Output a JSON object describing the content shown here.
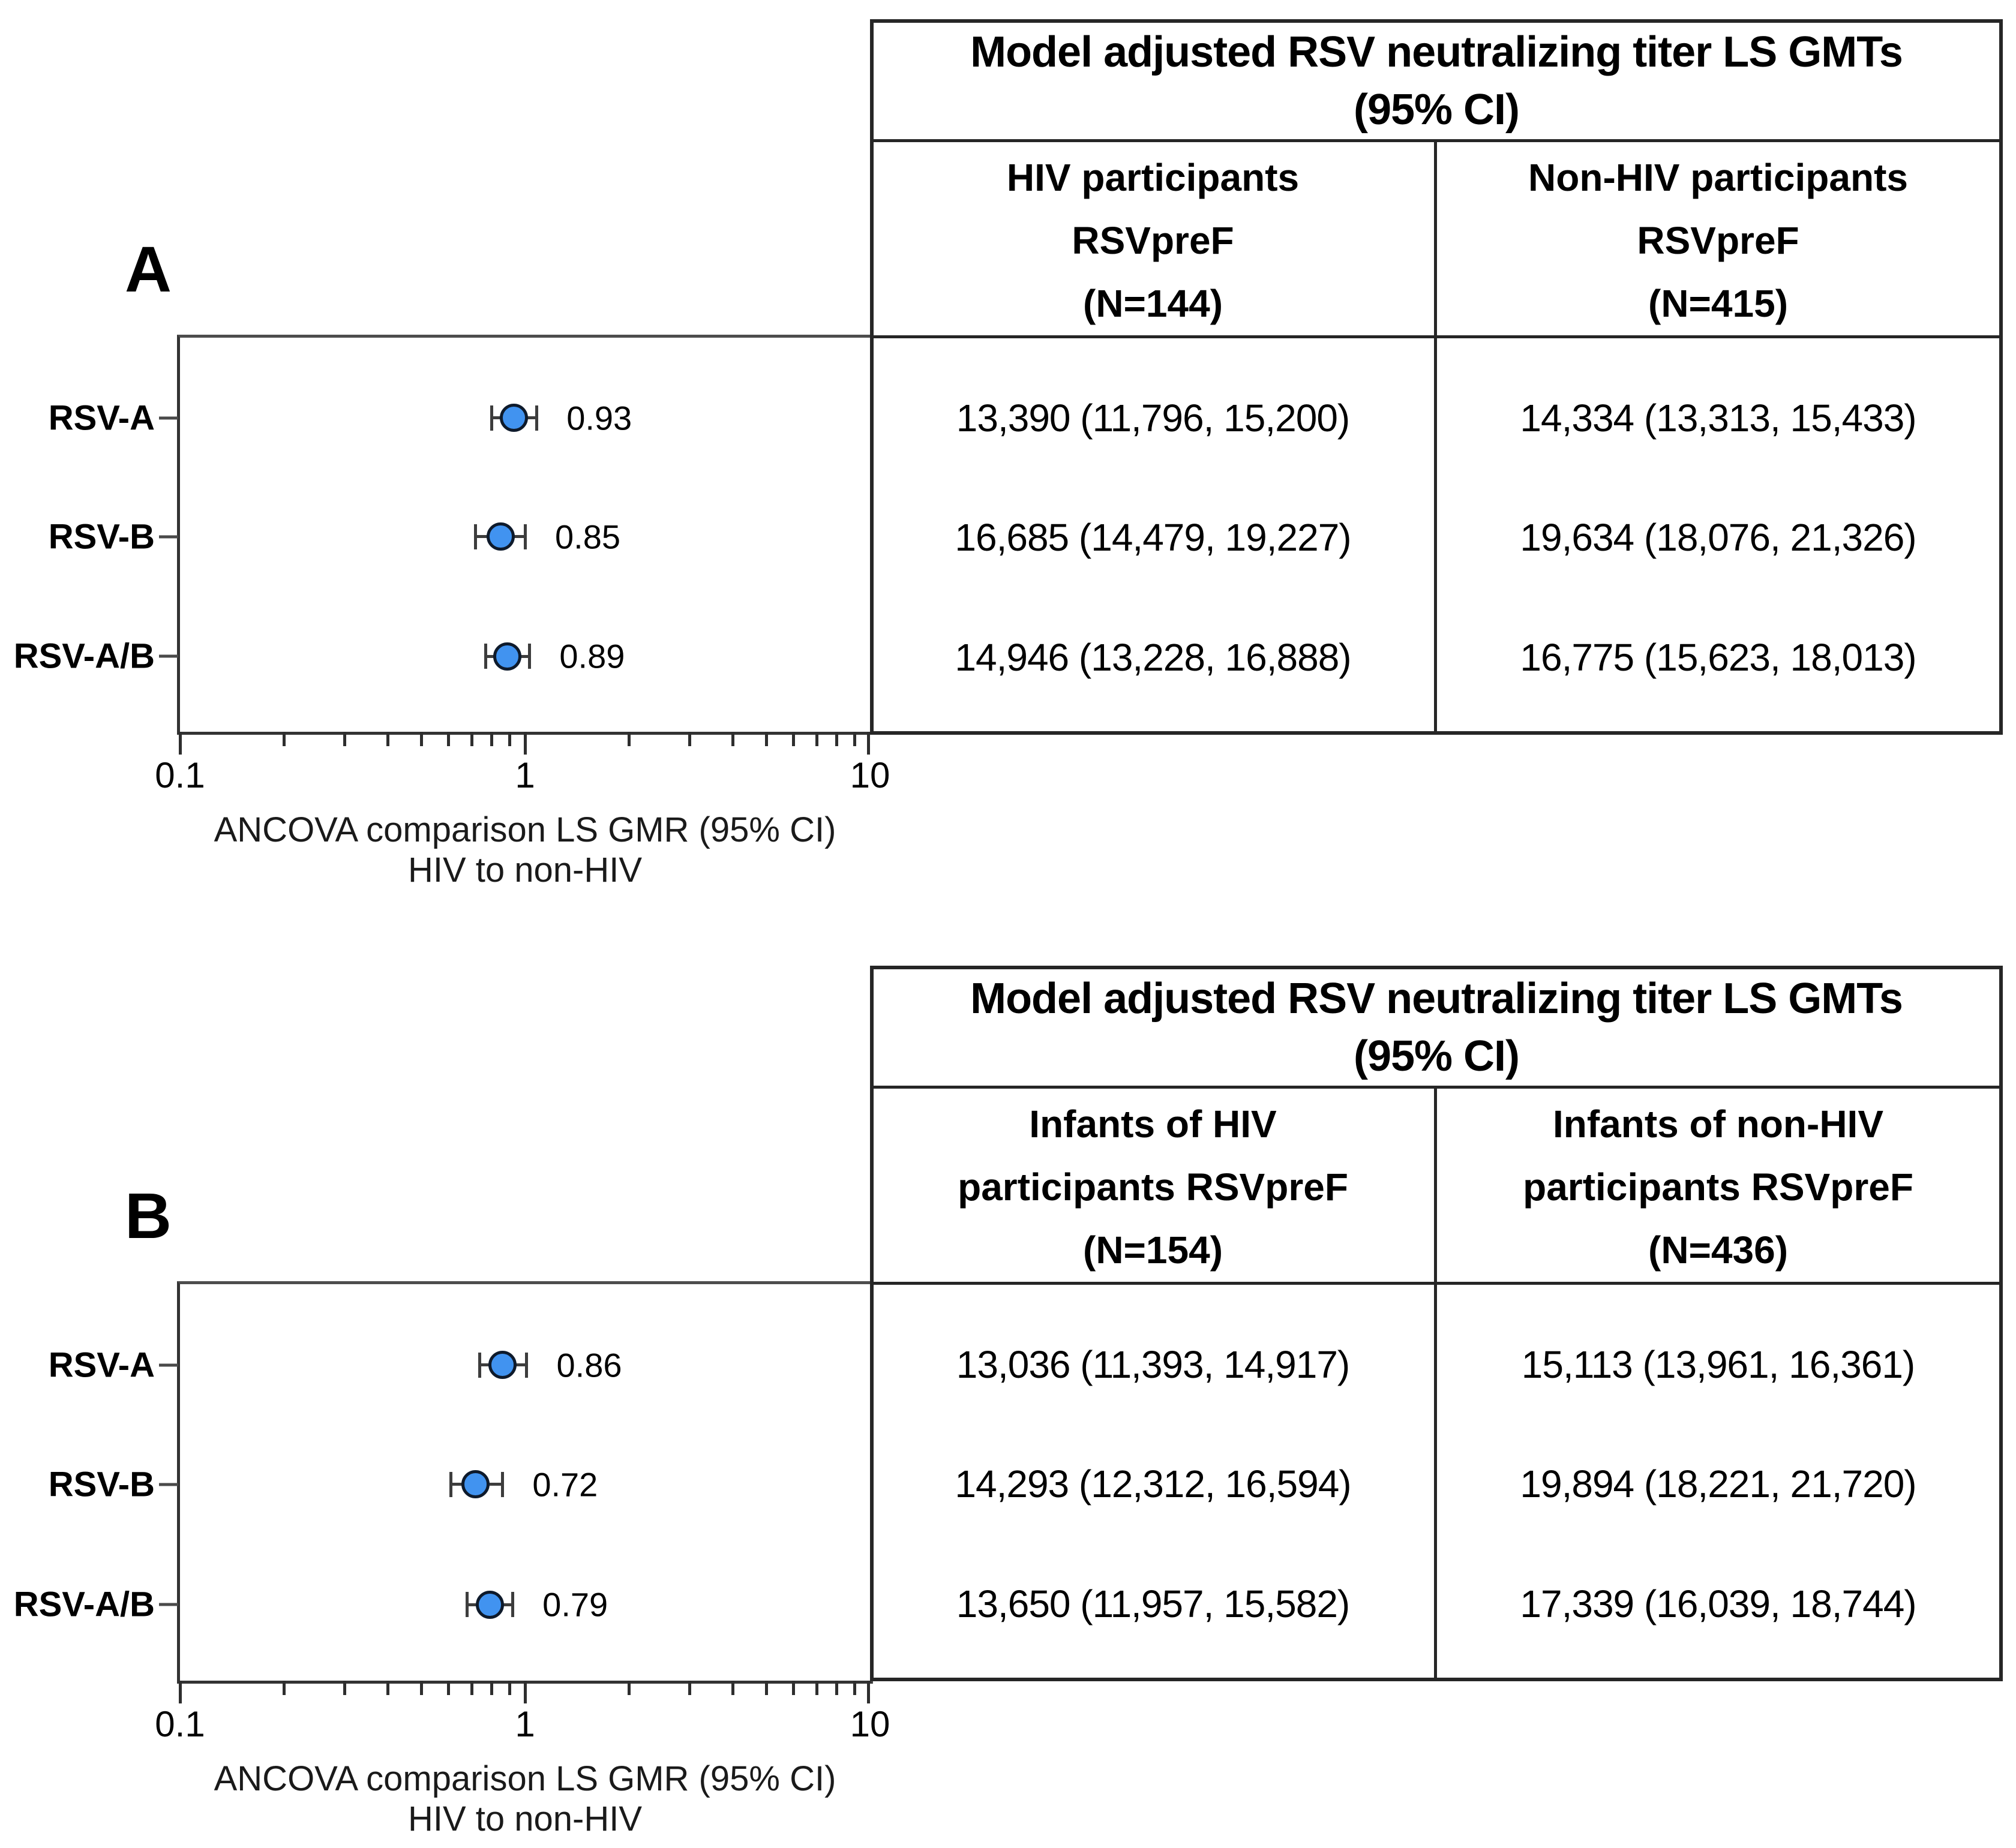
{
  "figure": {
    "background": "#ffffff",
    "marker_fill": "#4193f0",
    "marker_stroke": "#0e1a2b",
    "whisker_color": "#3d3d3d"
  },
  "panels": [
    {
      "label": "A",
      "rows": [
        {
          "category": "RSV-A",
          "gmr_label": "0.93",
          "gmts": [
            "13,390 (11,796, 15,200)",
            "14,334 (13,313, 15,433)"
          ]
        },
        {
          "category": "RSV-B",
          "gmr_label": "0.85",
          "gmts": [
            "16,685 (14,479, 19,227)",
            "19,634 (18,076, 21,326)"
          ]
        },
        {
          "category": "RSV-A/B",
          "gmr_label": "0.89",
          "gmts": [
            "14,946 (13,228, 16,888)",
            "16,775 (15,623, 18,013)"
          ]
        }
      ],
      "axis": {
        "tick_labels": [
          "0.1",
          "1",
          "10"
        ],
        "caption_line1": "ANCOVA comparison LS GMR (95% CI)",
        "caption_line2": "HIV to non-HIV"
      },
      "table": {
        "title_line1": "Model adjusted RSV neutralizing titer LS GMTs",
        "title_line2": "(95% CI)",
        "columns": [
          {
            "header_lines": [
              "HIV participants",
              "RSVpreF",
              "(N=144)"
            ]
          },
          {
            "header_lines": [
              "Non-HIV participants",
              "RSVpreF",
              "(N=415)"
            ]
          }
        ]
      }
    },
    {
      "label": "B",
      "rows": [
        {
          "category": "RSV-A",
          "gmr_label": "0.86",
          "gmts": [
            "13,036 (11,393, 14,917)",
            "15,113 (13,961, 16,361)"
          ]
        },
        {
          "category": "RSV-B",
          "gmr_label": "0.72",
          "gmts": [
            "14,293 (12,312, 16,594)",
            "19,894 (18,221, 21,720)"
          ]
        },
        {
          "category": "RSV-A/B",
          "gmr_label": "0.79",
          "gmts": [
            "13,650 (11,957, 15,582)",
            "17,339 (16,039, 18,744)"
          ]
        }
      ],
      "axis": {
        "tick_labels": [
          "0.1",
          "1",
          "10"
        ],
        "caption_line1": "ANCOVA comparison LS GMR (95% CI)",
        "caption_line2": "HIV to non-HIV"
      },
      "table": {
        "title_line1": "Model adjusted RSV neutralizing titer LS GMTs",
        "title_line2": "(95% CI)",
        "columns": [
          {
            "header_lines": [
              "Infants of HIV",
              "participants RSVpreF",
              "(N=154)"
            ]
          },
          {
            "header_lines": [
              "Infants of non-HIV",
              "participants RSVpreF",
              "(N=436)"
            ]
          }
        ]
      }
    }
  ],
  "chart_data": [
    {
      "type": "scatter",
      "panel": "A",
      "title": "Model adjusted RSV neutralizing titer LS GMTs (95% CI)",
      "categories": [
        "RSV-A",
        "RSV-B",
        "RSV-A/B"
      ],
      "values": [
        0.93,
        0.85,
        0.89
      ],
      "ci_low": [
        0.8,
        0.72,
        0.77
      ],
      "ci_high": [
        1.08,
        1.0,
        1.03
      ],
      "xlabel": "ANCOVA comparison LS GMR (95% CI) HIV to non-HIV",
      "xscale": "log",
      "xlim": [
        0.1,
        10
      ],
      "xticks": [
        0.1,
        1,
        10
      ],
      "grid": false,
      "marker_color": "#4193f0",
      "table_series": [
        {
          "name": "HIV participants RSVpreF (N=144)",
          "gmt": [
            13390,
            16685,
            14946
          ],
          "gmt_ci": [
            [
              11796,
              15200
            ],
            [
              14479,
              19227
            ],
            [
              13228,
              16888
            ]
          ]
        },
        {
          "name": "Non-HIV participants RSVpreF (N=415)",
          "gmt": [
            14334,
            19634,
            16775
          ],
          "gmt_ci": [
            [
              13313,
              15433
            ],
            [
              18076,
              21326
            ],
            [
              15623,
              18013
            ]
          ]
        }
      ]
    },
    {
      "type": "scatter",
      "panel": "B",
      "title": "Model adjusted RSV neutralizing titer LS GMTs (95% CI)",
      "categories": [
        "RSV-A",
        "RSV-B",
        "RSV-A/B"
      ],
      "values": [
        0.86,
        0.72,
        0.79
      ],
      "ci_low": [
        0.74,
        0.61,
        0.68
      ],
      "ci_high": [
        1.01,
        0.86,
        0.92
      ],
      "xlabel": "ANCOVA comparison LS GMR (95% CI) HIV to non-HIV",
      "xscale": "log",
      "xlim": [
        0.1,
        10
      ],
      "xticks": [
        0.1,
        1,
        10
      ],
      "grid": false,
      "marker_color": "#4193f0",
      "table_series": [
        {
          "name": "Infants of HIV participants RSVpreF (N=154)",
          "gmt": [
            13036,
            14293,
            13650
          ],
          "gmt_ci": [
            [
              11393,
              14917
            ],
            [
              12312,
              16594
            ],
            [
              11957,
              15582
            ]
          ]
        },
        {
          "name": "Infants of non-HIV participants RSVpreF (N=436)",
          "gmt": [
            15113,
            19894,
            17339
          ],
          "gmt_ci": [
            [
              13961,
              16361
            ],
            [
              18221,
              21720
            ],
            [
              16039,
              18744
            ]
          ]
        }
      ]
    }
  ]
}
